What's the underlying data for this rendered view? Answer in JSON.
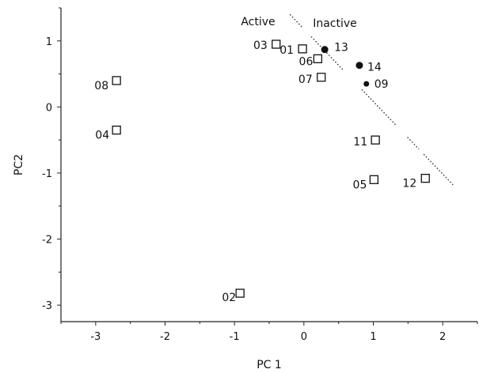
{
  "chart_data": {
    "type": "scatter",
    "title": "",
    "xlabel": "PC 1",
    "ylabel": "PC2",
    "xlim": [
      -3.5,
      2.5
    ],
    "ylim": [
      -3.25,
      1.5
    ],
    "xticks": [
      -3,
      -2,
      -1,
      0,
      1,
      2
    ],
    "yticks": [
      1,
      0,
      -1,
      -2,
      -3
    ],
    "grid": false,
    "region_labels": {
      "left": "Active",
      "right": "Inactive"
    },
    "series": [
      {
        "marker": "open-square",
        "points": [
          {
            "label": "01",
            "x": -0.02,
            "y": 0.88
          },
          {
            "label": "02",
            "x": -0.92,
            "y": -2.82
          },
          {
            "label": "03",
            "x": -0.4,
            "y": 0.95
          },
          {
            "label": "04",
            "x": -2.7,
            "y": -0.35
          },
          {
            "label": "05",
            "x": 1.01,
            "y": -1.1
          },
          {
            "label": "06",
            "x": 0.2,
            "y": 0.73
          },
          {
            "label": "07",
            "x": 0.25,
            "y": 0.45
          },
          {
            "label": "08",
            "x": -2.7,
            "y": 0.4
          },
          {
            "label": "11",
            "x": 1.03,
            "y": -0.5
          },
          {
            "label": "12",
            "x": 1.75,
            "y": -1.08
          }
        ]
      },
      {
        "marker": "filled-circle",
        "points": [
          {
            "label": "09",
            "x": 0.9,
            "y": 0.35
          },
          {
            "label": "13",
            "x": 0.3,
            "y": 0.87
          },
          {
            "label": "14",
            "x": 0.8,
            "y": 0.63
          }
        ]
      }
    ],
    "boundary": [
      [
        -0.2,
        1.4
      ],
      [
        2.15,
        -1.18
      ]
    ]
  }
}
